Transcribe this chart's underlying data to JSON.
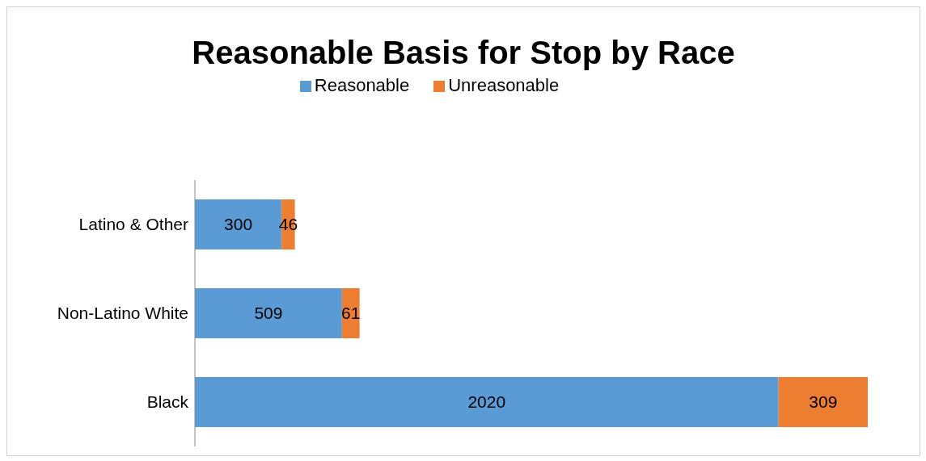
{
  "chart_data": {
    "type": "bar",
    "title": "Reasonable Basis for Stop by Race",
    "orientation": "horizontal",
    "stacked": true,
    "categories": [
      "Latino & Other",
      "Non-Latino White",
      "Black"
    ],
    "series": [
      {
        "name": "Reasonable",
        "color": "#5b9bd5",
        "values": [
          300,
          509,
          2020
        ]
      },
      {
        "name": "Unreasonable",
        "color": "#ed7d31",
        "values": [
          46,
          61,
          309
        ]
      }
    ],
    "data_labels": true,
    "legend": "top"
  }
}
